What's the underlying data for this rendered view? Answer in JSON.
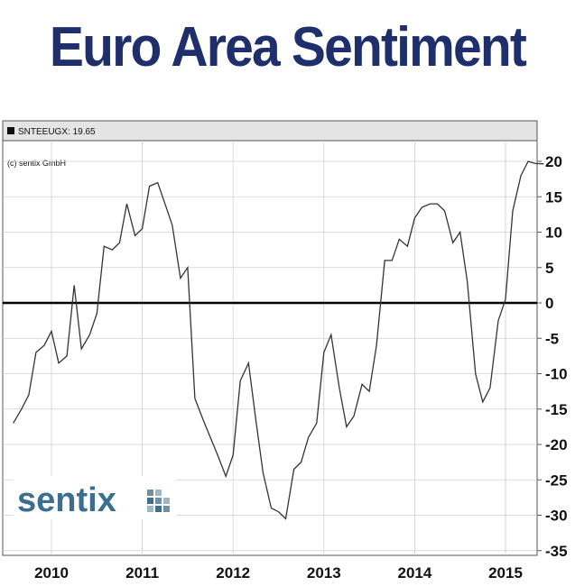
{
  "title": "Euro Area Sentiment",
  "legend_label": "SNTEEUGX: 19.65",
  "copyright": "(c) sentix GmbH",
  "logo_text": "sentix",
  "colors": {
    "title": "#1f2f6b",
    "line": "#333333",
    "zero_line": "#000000",
    "grid": "#cfcfcf",
    "header_bar": "#e4e4e4",
    "logo": "#3b6e8f"
  },
  "chart_data": {
    "type": "line",
    "title": "Euro Area Sentiment",
    "ylim": [
      -35,
      20
    ],
    "y_ticks": [
      20,
      15,
      10,
      5,
      0,
      -5,
      -10,
      -15,
      -20,
      -25,
      -30,
      -35
    ],
    "x_ticks": [
      "2010",
      "2011",
      "2012",
      "2013",
      "2014",
      "2015"
    ],
    "grid": true,
    "series": [
      {
        "name": "SNTEEUGX",
        "x": [
          2009.58,
          2009.67,
          2009.75,
          2009.83,
          2009.92,
          2010.0,
          2010.08,
          2010.17,
          2010.25,
          2010.33,
          2010.42,
          2010.5,
          2010.58,
          2010.67,
          2010.75,
          2010.83,
          2010.92,
          2011.0,
          2011.08,
          2011.17,
          2011.25,
          2011.33,
          2011.42,
          2011.5,
          2011.58,
          2011.67,
          2011.75,
          2011.83,
          2011.92,
          2012.0,
          2012.08,
          2012.17,
          2012.25,
          2012.33,
          2012.42,
          2012.5,
          2012.58,
          2012.67,
          2012.75,
          2012.83,
          2012.92,
          2013.0,
          2013.08,
          2013.17,
          2013.25,
          2013.33,
          2013.42,
          2013.5,
          2013.58,
          2013.67,
          2013.75,
          2013.83,
          2013.92,
          2014.0,
          2014.08,
          2014.17,
          2014.25,
          2014.33,
          2014.42,
          2014.5,
          2014.58,
          2014.67,
          2014.75,
          2014.83,
          2014.92,
          2015.0,
          2015.08,
          2015.17,
          2015.25,
          2015.33,
          2015.42
        ],
        "values": [
          -17,
          -15,
          -13,
          -7,
          -6,
          -4,
          -8.5,
          -7.5,
          2.5,
          -6.5,
          -4.5,
          -1.5,
          8,
          7.5,
          8.5,
          14,
          9.5,
          10.5,
          16.5,
          17,
          14,
          11,
          3.5,
          5,
          -13.5,
          -16.5,
          -19,
          -21.5,
          -24.5,
          -21.5,
          -11,
          -8.5,
          -16.5,
          -24,
          -29,
          -29.5,
          -30.5,
          -23.5,
          -22.5,
          -19,
          -17,
          -7,
          -4.5,
          -12,
          -17.5,
          -16,
          -11.5,
          -12.5,
          -6,
          6,
          6,
          9,
          8,
          12,
          13.5,
          14,
          14,
          13,
          8.5,
          10,
          3,
          -10,
          -14,
          -12,
          -2.5,
          0.5,
          13,
          18,
          20,
          19.7,
          19.65
        ]
      }
    ]
  }
}
